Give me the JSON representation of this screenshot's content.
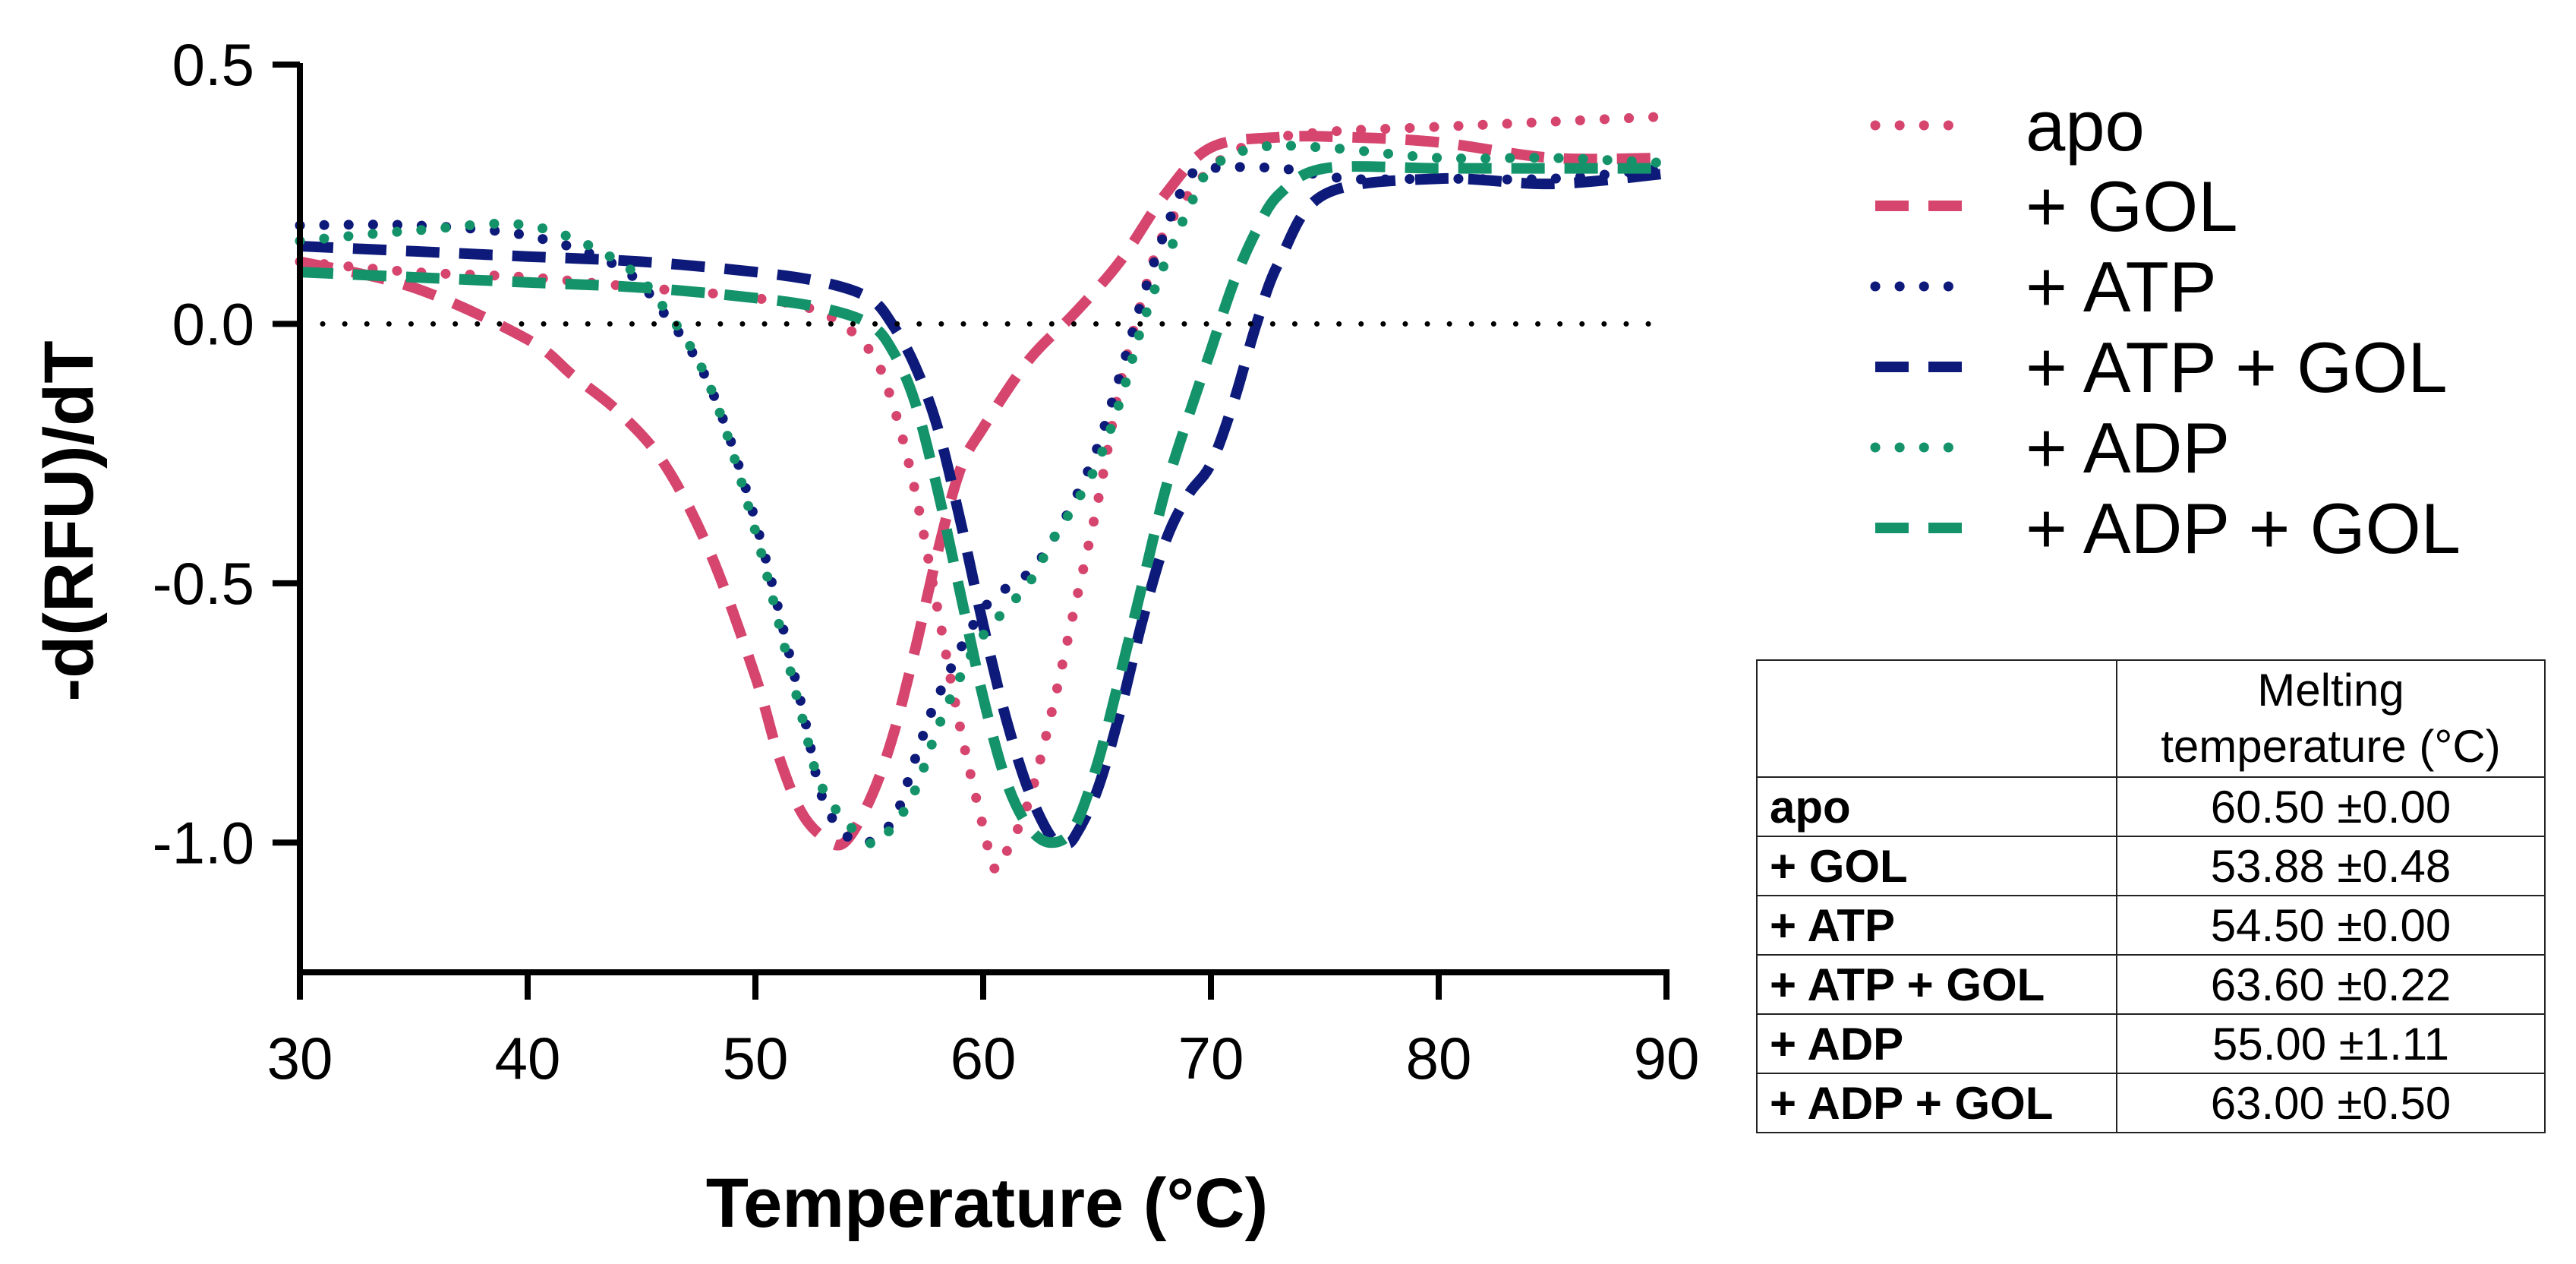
{
  "chart_data": {
    "type": "line",
    "title": "",
    "xlabel": "Temperature (°C)",
    "ylabel": "-d(RFU)/dT",
    "xlim": [
      30,
      90
    ],
    "ylim": [
      -1.25,
      0.5
    ],
    "xticks": [
      30,
      40,
      50,
      60,
      70,
      80,
      90
    ],
    "yticks": [
      0.5,
      0.0,
      -0.5,
      -1.0
    ],
    "xtick_labels": [
      "30",
      "40",
      "50",
      "60",
      "70",
      "80",
      "90"
    ],
    "ytick_labels": [
      "0.5",
      "0.0",
      "-0.5",
      "-1.0"
    ],
    "grid": false,
    "reference_line": {
      "y": 0,
      "style": "dotted",
      "color": "#000000"
    },
    "legend_position": "top-right (outside plot)",
    "series": [
      {
        "name": "apo",
        "color": "#d6456e",
        "style": "dotted",
        "x": [
          30,
          35,
          40,
          45,
          50,
          53,
          55,
          56,
          57,
          58,
          59,
          60,
          60.5,
          61,
          62,
          63,
          64,
          65,
          66,
          67,
          68,
          70,
          72,
          75,
          80,
          85,
          90
        ],
        "y": [
          0.12,
          0.1,
          0.09,
          0.07,
          0.05,
          0.02,
          -0.05,
          -0.15,
          -0.32,
          -0.55,
          -0.78,
          -0.97,
          -1.05,
          -1.02,
          -0.92,
          -0.75,
          -0.55,
          -0.35,
          -0.12,
          0.05,
          0.18,
          0.3,
          0.35,
          0.37,
          0.38,
          0.39,
          0.4
        ]
      },
      {
        "name": "+ GOL",
        "color": "#d6456e",
        "style": "dashed",
        "x": [
          30,
          35,
          40,
          42,
          44,
          46,
          48,
          50,
          51,
          52,
          53,
          53.9,
          55,
          56,
          57,
          58,
          59,
          60,
          62,
          64,
          66,
          68,
          70,
          73,
          76,
          80,
          85,
          90
        ],
        "y": [
          0.12,
          0.07,
          -0.03,
          -0.1,
          -0.17,
          -0.27,
          -0.44,
          -0.68,
          -0.83,
          -0.94,
          -0.99,
          -1.0,
          -0.92,
          -0.8,
          -0.63,
          -0.44,
          -0.28,
          -0.2,
          -0.07,
          0.02,
          0.12,
          0.25,
          0.34,
          0.36,
          0.36,
          0.35,
          0.32,
          0.32
        ]
      },
      {
        "name": "+ ATP",
        "color": "#0d1a7a",
        "style": "dotted",
        "x": [
          30,
          35,
          40,
          44,
          46,
          48,
          50,
          52,
          53,
          54.5,
          56,
          57,
          58,
          60,
          62,
          63,
          64,
          65,
          66,
          67,
          68,
          69,
          70,
          73,
          76,
          80,
          85,
          90
        ],
        "y": [
          0.19,
          0.19,
          0.17,
          0.11,
          0.02,
          -0.12,
          -0.38,
          -0.73,
          -0.92,
          -1.0,
          -0.96,
          -0.84,
          -0.72,
          -0.55,
          -0.48,
          -0.42,
          -0.34,
          -0.24,
          -0.1,
          0.05,
          0.18,
          0.28,
          0.3,
          0.3,
          0.28,
          0.28,
          0.28,
          0.3
        ]
      },
      {
        "name": "+ ATP + GOL",
        "color": "#0d1a7a",
        "style": "dashed",
        "x": [
          30,
          35,
          40,
          45,
          50,
          53,
          55,
          56,
          57,
          58,
          59,
          60,
          61,
          62,
          63,
          63.6,
          64,
          65,
          66,
          67,
          68,
          69,
          70,
          71,
          72,
          73,
          75,
          80,
          85,
          90
        ],
        "y": [
          0.15,
          0.14,
          0.13,
          0.12,
          0.1,
          0.08,
          0.05,
          0.0,
          -0.08,
          -0.2,
          -0.38,
          -0.58,
          -0.76,
          -0.9,
          -0.99,
          -1.0,
          -0.99,
          -0.9,
          -0.75,
          -0.57,
          -0.42,
          -0.33,
          -0.27,
          -0.15,
          0.0,
          0.12,
          0.25,
          0.28,
          0.27,
          0.29
        ]
      },
      {
        "name": "+ ADP",
        "color": "#14936a",
        "style": "dotted",
        "x": [
          30,
          35,
          40,
          44,
          46,
          48,
          50,
          52,
          53,
          55,
          56,
          57,
          58,
          59,
          60,
          62,
          63,
          64,
          65,
          66,
          67,
          68,
          69,
          70,
          72,
          75,
          80,
          85,
          90
        ],
        "y": [
          0.16,
          0.18,
          0.19,
          0.12,
          0.03,
          -0.12,
          -0.4,
          -0.75,
          -0.9,
          -1.0,
          -0.97,
          -0.9,
          -0.78,
          -0.68,
          -0.6,
          -0.5,
          -0.42,
          -0.35,
          -0.27,
          -0.15,
          0.0,
          0.12,
          0.22,
          0.3,
          0.34,
          0.34,
          0.32,
          0.32,
          0.31
        ]
      },
      {
        "name": "+ ADP + GOL",
        "color": "#14936a",
        "style": "dashed",
        "x": [
          30,
          35,
          40,
          45,
          50,
          53,
          55,
          56,
          57,
          58,
          59,
          60,
          61,
          62,
          63,
          64,
          65,
          66,
          67,
          68,
          69,
          70,
          71,
          72,
          73,
          75,
          80,
          85,
          90
        ],
        "y": [
          0.1,
          0.09,
          0.08,
          0.07,
          0.05,
          0.03,
          0.0,
          -0.05,
          -0.15,
          -0.32,
          -0.52,
          -0.72,
          -0.88,
          -0.97,
          -1.0,
          -0.97,
          -0.85,
          -0.68,
          -0.5,
          -0.32,
          -0.18,
          -0.05,
          0.08,
          0.18,
          0.25,
          0.3,
          0.3,
          0.3,
          0.3
        ]
      }
    ]
  },
  "table": {
    "header": [
      "",
      "Melting temperature (°C)"
    ],
    "rows": [
      {
        "label": "apo",
        "value": "60.50 ±0.00"
      },
      {
        "label": "+ GOL",
        "value": "53.88 ±0.48"
      },
      {
        "label": "+ ATP",
        "value": "54.50 ±0.00"
      },
      {
        "label": "+ ATP + GOL",
        "value": "63.60 ±0.22"
      },
      {
        "label": "+ ADP",
        "value": "55.00 ±1.11"
      },
      {
        "label": "+ ADP + GOL",
        "value": "63.00 ±0.50"
      }
    ]
  }
}
